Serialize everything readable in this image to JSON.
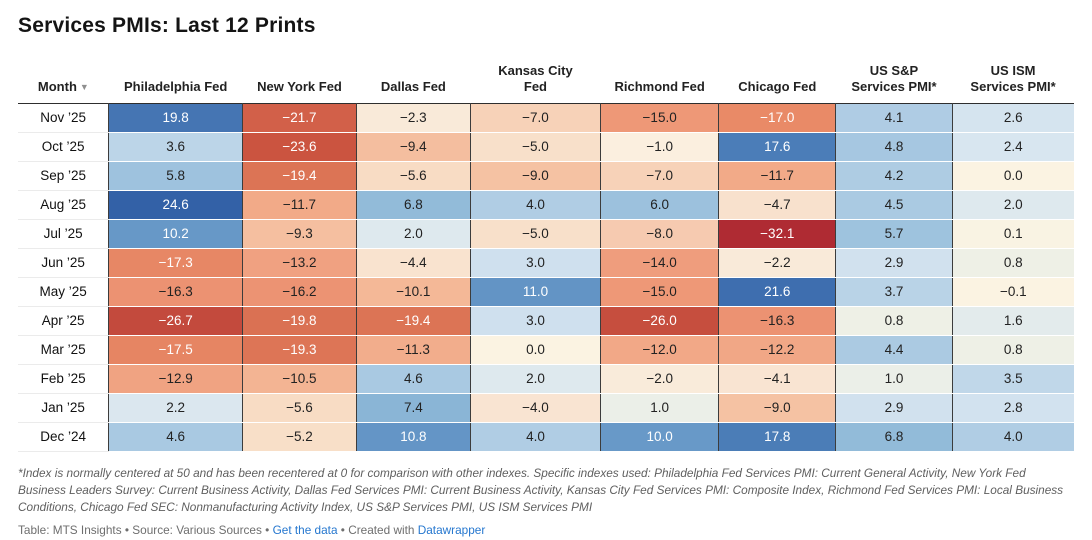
{
  "title": "Services PMIs: Last 12 Prints",
  "icons": {
    "sort_desc": "▼"
  },
  "chart_data": {
    "type": "heatmap",
    "columns": [
      "Month",
      "Philadelphia Fed",
      "New York Fed",
      "Dallas Fed",
      "Kansas City\nFed",
      "Richmond Fed",
      "Chicago Fed",
      "US S&P\nServices PMI*",
      "US ISM\nServices PMI*"
    ],
    "rows": [
      {
        "month": "Nov ’25",
        "values": [
          19.8,
          -21.7,
          -2.3,
          -7.0,
          -15.0,
          -17.0,
          4.1,
          2.6
        ]
      },
      {
        "month": "Oct ’25",
        "values": [
          3.6,
          -23.6,
          -9.4,
          -5.0,
          -1.0,
          17.6,
          4.8,
          2.4
        ]
      },
      {
        "month": "Sep ’25",
        "values": [
          5.8,
          -19.4,
          -5.6,
          -9.0,
          -7.0,
          -11.7,
          4.2,
          0.0
        ]
      },
      {
        "month": "Aug ’25",
        "values": [
          24.6,
          -11.7,
          6.8,
          4.0,
          6.0,
          -4.7,
          4.5,
          2.0
        ]
      },
      {
        "month": "Jul ’25",
        "values": [
          10.2,
          -9.3,
          2.0,
          -5.0,
          -8.0,
          -32.1,
          5.7,
          0.1
        ]
      },
      {
        "month": "Jun ’25",
        "values": [
          -17.3,
          -13.2,
          -4.4,
          3.0,
          -14.0,
          -2.2,
          2.9,
          0.8
        ]
      },
      {
        "month": "May ’25",
        "values": [
          -16.3,
          -16.2,
          -10.1,
          11.0,
          -15.0,
          21.6,
          3.7,
          -0.1
        ]
      },
      {
        "month": "Apr ’25",
        "values": [
          -26.7,
          -19.8,
          -19.4,
          3.0,
          -26.0,
          -16.3,
          0.8,
          1.6
        ]
      },
      {
        "month": "Mar ’25",
        "values": [
          -17.5,
          -19.3,
          -11.3,
          0.0,
          -12.0,
          -12.2,
          4.4,
          0.8
        ]
      },
      {
        "month": "Feb ’25",
        "values": [
          -12.9,
          -10.5,
          4.6,
          2.0,
          -2.0,
          -4.1,
          1.0,
          3.5
        ]
      },
      {
        "month": "Jan ’25",
        "values": [
          2.2,
          -5.6,
          7.4,
          -4.0,
          1.0,
          -9.0,
          2.9,
          2.8
        ]
      },
      {
        "month": "Dec ’24",
        "values": [
          4.6,
          -5.2,
          10.8,
          4.0,
          10.0,
          17.8,
          6.8,
          4.0
        ]
      }
    ],
    "color_scale": {
      "midpoint": 0,
      "positive_stops": [
        [
          0,
          "#fbf3e2"
        ],
        [
          0.8,
          "#eef0e6"
        ],
        [
          1.6,
          "#e3ebec"
        ],
        [
          2.4,
          "#d8e6f0"
        ],
        [
          3.0,
          "#cfe0ee"
        ],
        [
          4.0,
          "#b0cde4"
        ],
        [
          5.0,
          "#a4c6e0"
        ],
        [
          6.0,
          "#9cc1dd"
        ],
        [
          7.0,
          "#90b9d8"
        ],
        [
          8.0,
          "#82b0d2"
        ],
        [
          10.0,
          "#6899c8"
        ],
        [
          11.0,
          "#6394c5"
        ],
        [
          14.0,
          "#5586bc"
        ],
        [
          18.0,
          "#4a7cb7"
        ],
        [
          20.0,
          "#4474b2"
        ],
        [
          22.0,
          "#3d6dae"
        ],
        [
          24.6,
          "#3361a7"
        ]
      ],
      "negative_stops": [
        [
          0,
          "#fbf3e2"
        ],
        [
          1.0,
          "#fbefdf"
        ],
        [
          2.3,
          "#f9ead9"
        ],
        [
          4.1,
          "#f9e4d2"
        ],
        [
          5.2,
          "#f8dfc8"
        ],
        [
          7.0,
          "#f7d2b8"
        ],
        [
          8.0,
          "#f6cab0"
        ],
        [
          9.0,
          "#f5c2a3"
        ],
        [
          10.5,
          "#f3b493"
        ],
        [
          11.7,
          "#f2aa88"
        ],
        [
          13.2,
          "#f0a181"
        ],
        [
          15.0,
          "#ee9877"
        ],
        [
          16.4,
          "#ec9272"
        ],
        [
          17.0,
          "#e98a67"
        ],
        [
          19.4,
          "#dc7455"
        ],
        [
          21.7,
          "#d26049"
        ],
        [
          23.6,
          "#cb5440"
        ],
        [
          26.0,
          "#c64e3e"
        ],
        [
          26.7,
          "#c34a3d"
        ],
        [
          32.1,
          "#af2b33"
        ]
      ],
      "white_text_pos_min": 9.8,
      "white_text_neg_max": -16.8,
      "dark_text_color": "#222222",
      "white_text_color": "#ffffff"
    }
  },
  "footnote": "*Index is normally centered at 50 and has been recentered at 0 for comparison with other indexes. Specific indexes used: Philadelphia Fed Services PMI: Current General Activity, New York Fed Business Leaders Survey: Current Business Activity, Dallas Fed Services PMI: Current Business Activity, Kansas City Fed Services PMI: Composite Index, Richmond Fed Services PMI: Local Business Conditions, Chicago Fed SEC: Nonmanufacturing Activity Index, US S&P Services PMI, US ISM Services PMI",
  "attribution": {
    "prefix": "Table: MTS Insights • Source: Various Sources • ",
    "link_get_data": "Get the data",
    "middle": " • Created with ",
    "link_datawrapper": "Datawrapper"
  }
}
